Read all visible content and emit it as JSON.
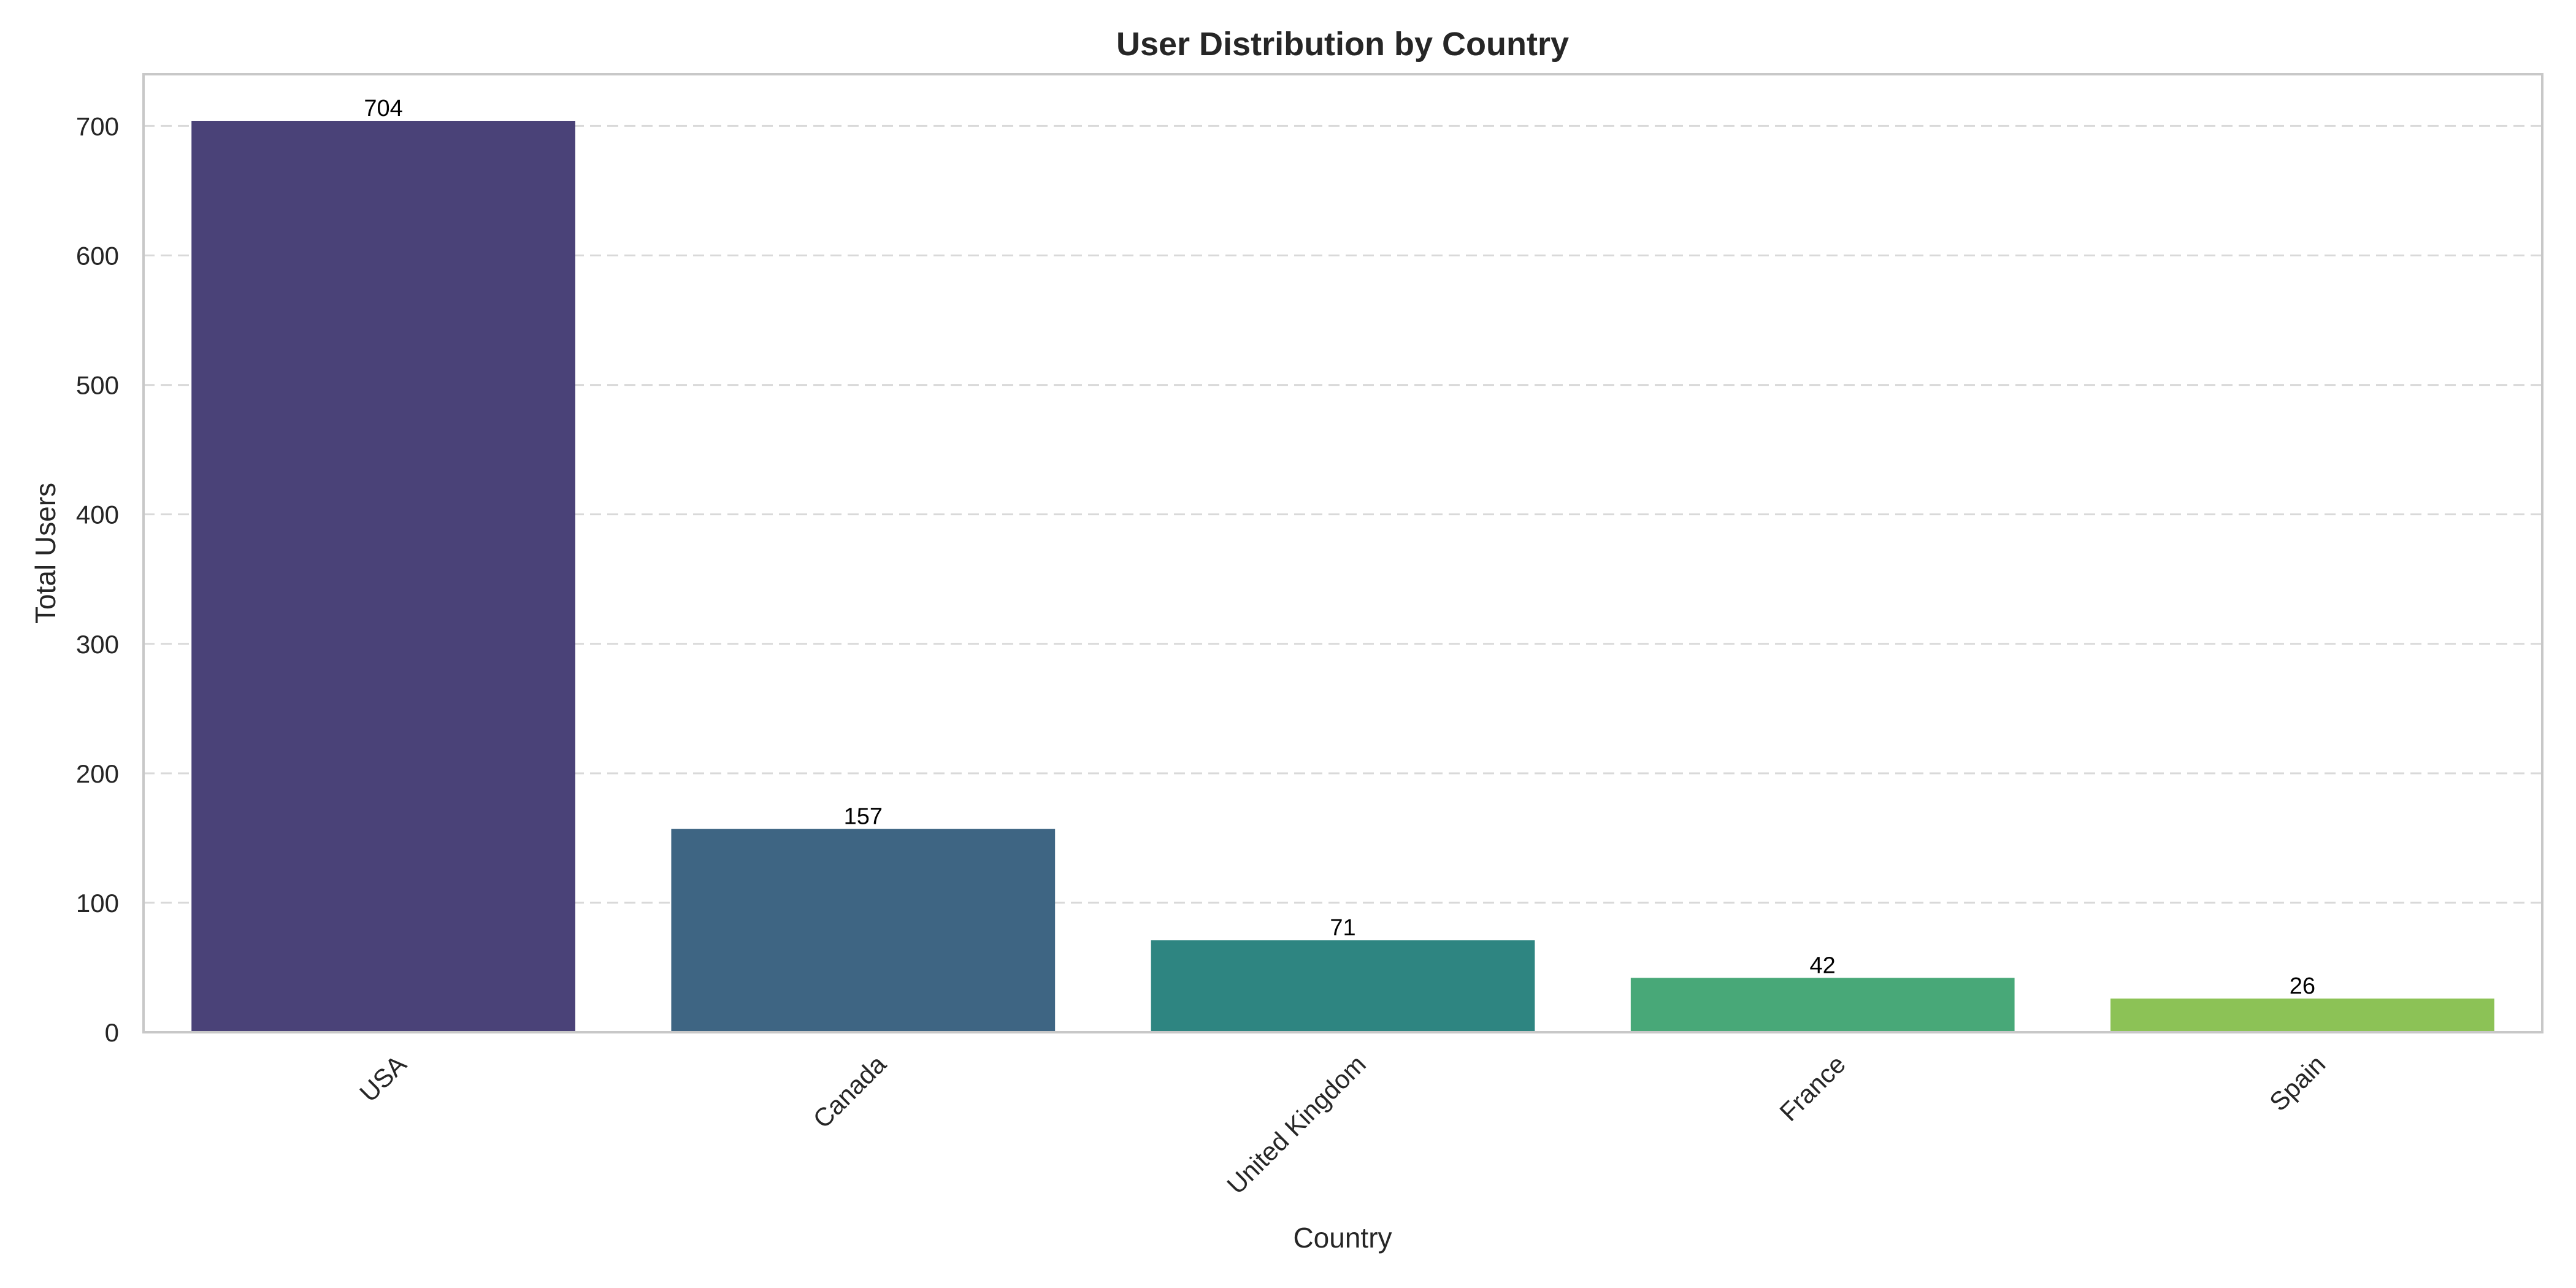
{
  "chart_data": {
    "type": "bar",
    "title": "User Distribution by Country",
    "xlabel": "Country",
    "ylabel": "Total Users",
    "categories": [
      "USA",
      "Canada",
      "United Kingdom",
      "France",
      "Spain"
    ],
    "values": [
      704,
      157,
      71,
      42,
      26
    ],
    "data_labels": [
      "704",
      "157",
      "71",
      "42",
      "26"
    ],
    "bar_colors": [
      "#4a4278",
      "#3e6583",
      "#2e8581",
      "#48a878",
      "#8cc256"
    ],
    "ylim": [
      0,
      740
    ],
    "yticks": [
      0,
      100,
      200,
      300,
      400,
      500,
      600,
      700
    ],
    "ytick_labels": [
      "0",
      "100",
      "200",
      "300",
      "400",
      "500",
      "600",
      "700"
    ],
    "grid": "horizontal dashed",
    "legend": "none",
    "xtick_rotation": "45 degrees"
  }
}
